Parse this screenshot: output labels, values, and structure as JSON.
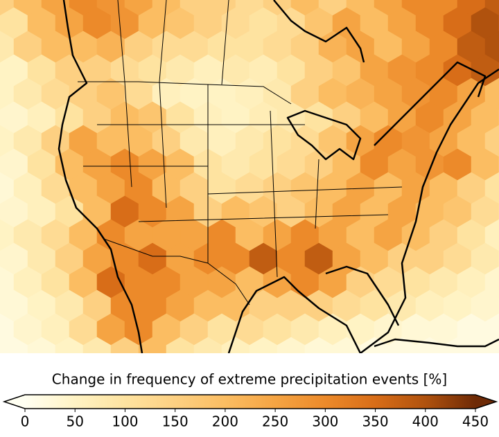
{
  "chart_data": {
    "type": "hexbin-map",
    "colorbar_label": "Change in frequency of extreme precipitation events [%]",
    "clim": [
      0,
      450
    ],
    "ticks": [
      0,
      50,
      100,
      150,
      200,
      250,
      300,
      350,
      400,
      450
    ],
    "extend": "both",
    "colors": [
      "#fffff2",
      "#fff3c4",
      "#fee3a0",
      "#fdd082",
      "#fbbd62",
      "#f5a443",
      "#ec8a2a",
      "#d86d18",
      "#b0520e",
      "#6e2a06"
    ],
    "hex_values": [
      [
        150,
        200,
        250,
        300,
        280,
        250,
        200,
        150,
        150,
        120,
        150,
        200,
        150,
        200,
        250,
        300,
        300,
        350,
        380
      ],
      [
        100,
        200,
        250,
        300,
        280,
        200,
        180,
        150,
        120,
        100,
        120,
        180,
        250,
        200,
        250,
        300,
        350,
        400,
        350
      ],
      [
        80,
        150,
        200,
        200,
        220,
        150,
        120,
        120,
        100,
        100,
        120,
        150,
        220,
        250,
        200,
        250,
        300,
        380,
        400
      ],
      [
        50,
        100,
        150,
        150,
        120,
        100,
        80,
        60,
        80,
        70,
        100,
        150,
        180,
        250,
        280,
        300,
        350,
        380,
        350
      ],
      [
        50,
        80,
        120,
        150,
        180,
        120,
        60,
        50,
        50,
        60,
        80,
        150,
        200,
        220,
        250,
        280,
        300,
        250,
        200
      ],
      [
        40,
        60,
        100,
        150,
        200,
        180,
        100,
        60,
        50,
        70,
        80,
        100,
        150,
        200,
        250,
        300,
        250,
        200,
        150
      ],
      [
        50,
        80,
        150,
        250,
        200,
        200,
        150,
        80,
        60,
        80,
        100,
        120,
        180,
        250,
        300,
        280,
        250,
        200,
        150
      ],
      [
        40,
        100,
        200,
        250,
        300,
        250,
        200,
        100,
        80,
        100,
        120,
        150,
        200,
        300,
        250,
        280,
        300,
        200,
        120
      ],
      [
        30,
        60,
        120,
        200,
        250,
        300,
        200,
        150,
        100,
        120,
        150,
        180,
        200,
        250,
        200,
        250,
        200,
        150,
        100
      ],
      [
        40,
        60,
        100,
        200,
        350,
        300,
        250,
        150,
        200,
        180,
        150,
        200,
        250,
        200,
        250,
        200,
        180,
        120,
        80
      ],
      [
        50,
        80,
        120,
        200,
        300,
        250,
        250,
        250,
        300,
        200,
        250,
        300,
        250,
        200,
        250,
        200,
        150,
        100,
        60
      ],
      [
        40,
        80,
        150,
        250,
        300,
        350,
        250,
        300,
        300,
        380,
        300,
        380,
        250,
        200,
        150,
        150,
        120,
        80,
        50
      ],
      [
        30,
        60,
        100,
        200,
        350,
        300,
        300,
        250,
        250,
        200,
        250,
        300,
        250,
        150,
        120,
        100,
        80,
        60,
        40
      ],
      [
        30,
        50,
        80,
        150,
        300,
        300,
        250,
        200,
        200,
        150,
        150,
        150,
        120,
        100,
        80,
        60,
        50,
        40,
        30
      ],
      [
        20,
        40,
        60,
        120,
        250,
        300,
        200,
        150,
        100,
        120,
        100,
        80,
        60,
        50,
        40,
        30,
        30,
        20,
        20
      ],
      [
        20,
        30,
        50,
        80,
        150,
        200,
        100,
        80,
        60,
        50,
        40,
        30,
        30,
        20,
        20,
        20,
        20,
        20,
        20
      ]
    ]
  }
}
